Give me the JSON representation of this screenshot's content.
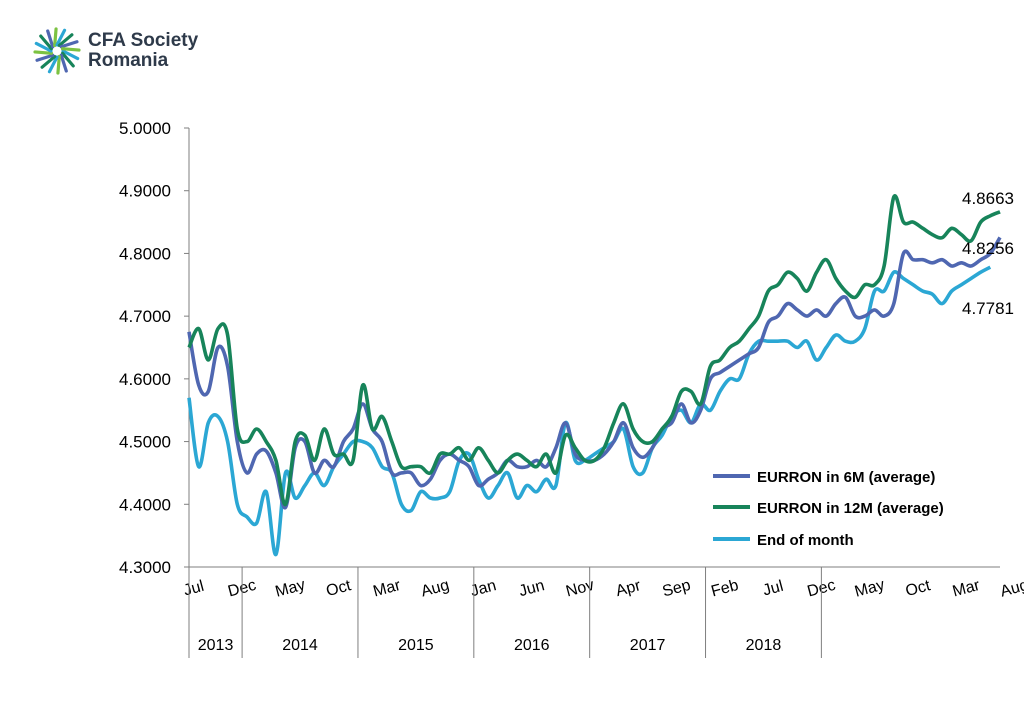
{
  "brand": {
    "name_line1": "CFA Society",
    "name_line2": "Romania",
    "icon": "cfa-society-starburst-logo"
  },
  "colors": {
    "series_6m": "#4f67b1",
    "series_12m": "#17845a",
    "series_eom": "#2ba7d4",
    "axis": "#7f7f7f"
  },
  "chart_data": {
    "type": "line",
    "title": "",
    "xlabel": "",
    "ylabel": "",
    "ylim": [
      4.3,
      5.0
    ],
    "yticks": [
      "4.3000",
      "4.4000",
      "4.5000",
      "4.6000",
      "4.7000",
      "4.8000",
      "4.9000",
      "5.0000"
    ],
    "grid": false,
    "legend_position": "bottom-right",
    "month_labels": [
      {
        "i": 0,
        "label": "Jul"
      },
      {
        "i": 5,
        "label": "Dec"
      },
      {
        "i": 10,
        "label": "May"
      },
      {
        "i": 15,
        "label": "Oct"
      },
      {
        "i": 20,
        "label": "Mar"
      },
      {
        "i": 25,
        "label": "Aug"
      },
      {
        "i": 30,
        "label": "Jan"
      },
      {
        "i": 35,
        "label": "Jun"
      },
      {
        "i": 40,
        "label": "Nov"
      },
      {
        "i": 45,
        "label": "Apr"
      },
      {
        "i": 50,
        "label": "Sep"
      },
      {
        "i": 55,
        "label": "Feb"
      },
      {
        "i": 60,
        "label": "Jul"
      },
      {
        "i": 65,
        "label": "Dec"
      },
      {
        "i": 70,
        "label": "May"
      },
      {
        "i": 75,
        "label": "Oct"
      },
      {
        "i": 80,
        "label": "Mar"
      },
      {
        "i": 85,
        "label": "Aug"
      }
    ],
    "year_groups": [
      {
        "label": "2013",
        "start": 0,
        "end": 5
      },
      {
        "label": "2014",
        "start": 6,
        "end": 17
      },
      {
        "label": "2015",
        "start": 18,
        "end": 29
      },
      {
        "label": "2016",
        "start": 30,
        "end": 41
      },
      {
        "label": "2017",
        "start": 42,
        "end": 53
      },
      {
        "label": "2018",
        "start": 54,
        "end": 65
      }
    ],
    "series": [
      {
        "name": "EURRON in 6M (average)",
        "color_key": "series_6m",
        "label": "4.8256",
        "values": [
          4.675,
          4.59,
          4.58,
          4.65,
          4.62,
          4.5,
          4.45,
          4.48,
          4.485,
          4.45,
          4.395,
          4.49,
          4.5,
          4.45,
          4.47,
          4.46,
          4.5,
          4.52,
          4.56,
          4.52,
          4.5,
          4.45,
          4.45,
          4.45,
          4.43,
          4.44,
          4.47,
          4.48,
          4.47,
          4.46,
          4.43,
          4.44,
          4.45,
          4.47,
          4.46,
          4.46,
          4.47,
          4.46,
          4.49,
          4.53,
          4.48,
          4.47,
          4.47,
          4.48,
          4.5,
          4.53,
          4.49,
          4.475,
          4.49,
          4.52,
          4.53,
          4.56,
          4.53,
          4.55,
          4.6,
          4.61,
          4.62,
          4.63,
          4.64,
          4.65,
          4.69,
          4.7,
          4.72,
          4.71,
          4.7,
          4.71,
          4.7,
          4.72,
          4.73,
          4.7,
          4.7,
          4.71,
          4.7,
          4.72,
          4.8,
          4.79,
          4.79,
          4.785,
          4.79,
          4.78,
          4.785,
          4.78,
          4.79,
          4.8,
          4.8256
        ]
      },
      {
        "name": "EURRON in 12M (average)",
        "color_key": "series_12m",
        "label": "4.8663",
        "values": [
          4.65,
          4.68,
          4.63,
          4.68,
          4.67,
          4.52,
          4.5,
          4.52,
          4.5,
          4.47,
          4.4,
          4.5,
          4.51,
          4.47,
          4.52,
          4.48,
          4.48,
          4.47,
          4.59,
          4.52,
          4.54,
          4.5,
          4.46,
          4.46,
          4.46,
          4.45,
          4.48,
          4.48,
          4.49,
          4.47,
          4.49,
          4.47,
          4.45,
          4.47,
          4.48,
          4.47,
          4.46,
          4.48,
          4.45,
          4.51,
          4.49,
          4.47,
          4.47,
          4.49,
          4.53,
          4.56,
          4.52,
          4.5,
          4.5,
          4.52,
          4.54,
          4.58,
          4.58,
          4.56,
          4.62,
          4.63,
          4.65,
          4.66,
          4.68,
          4.7,
          4.74,
          4.75,
          4.77,
          4.76,
          4.74,
          4.77,
          4.79,
          4.76,
          4.74,
          4.73,
          4.75,
          4.75,
          4.78,
          4.89,
          4.85,
          4.85,
          4.84,
          4.83,
          4.825,
          4.84,
          4.83,
          4.82,
          4.85,
          4.86,
          4.8663
        ]
      },
      {
        "name": "End of month",
        "color_key": "series_eom",
        "label": "4.7781",
        "values": [
          4.57,
          4.46,
          4.53,
          4.54,
          4.5,
          4.4,
          4.38,
          4.37,
          4.42,
          4.32,
          4.45,
          4.41,
          4.43,
          4.45,
          4.43,
          4.46,
          4.48,
          4.5,
          4.5,
          4.49,
          4.46,
          4.45,
          4.4,
          4.39,
          4.42,
          4.41,
          4.41,
          4.42,
          4.47,
          4.48,
          4.44,
          4.41,
          4.43,
          4.45,
          4.41,
          4.43,
          4.42,
          4.44,
          4.43,
          4.53,
          4.47,
          4.47,
          4.48,
          4.49,
          4.5,
          4.52,
          4.46,
          4.45,
          4.49,
          4.51,
          4.54,
          4.55,
          4.53,
          4.56,
          4.55,
          4.58,
          4.6,
          4.6,
          4.64,
          4.66,
          4.66,
          4.66,
          4.66,
          4.65,
          4.66,
          4.63,
          4.65,
          4.67,
          4.66,
          4.66,
          4.68,
          4.74,
          4.74,
          4.77,
          4.76,
          4.75,
          4.74,
          4.735,
          4.72,
          4.74,
          4.75,
          4.76,
          4.77,
          4.7781
        ]
      }
    ]
  }
}
